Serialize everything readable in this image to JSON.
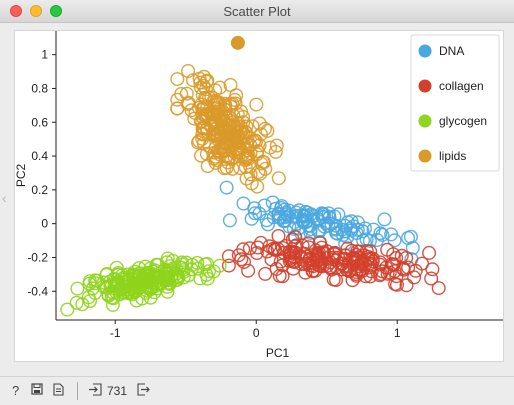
{
  "window": {
    "title": "Scatter Plot"
  },
  "chart_data": {
    "type": "scatter",
    "xlabel": "PC1",
    "ylabel": "PC2",
    "xlim": [
      -1.42,
      1.75
    ],
    "ylim": [
      -0.57,
      1.14
    ],
    "xticks": [
      "-1",
      "0",
      "1"
    ],
    "yticks": [
      "1",
      "0.8",
      "0.6",
      "0.4",
      "0.2",
      "0",
      "-0.2",
      "-0.4"
    ],
    "legend_position": "top-right",
    "series": [
      {
        "name": "DNA",
        "color": "#4aa7e0",
        "count": 110,
        "center": [
          0.45,
          0.0
        ],
        "spread": [
          0.55,
          0.09
        ],
        "tilt": -0.18,
        "highlight": []
      },
      {
        "name": "collagen",
        "color": "#d2402c",
        "count": 180,
        "center": [
          0.55,
          -0.22
        ],
        "spread": [
          0.62,
          0.1
        ],
        "tilt": -0.08,
        "highlight": []
      },
      {
        "name": "glycogen",
        "color": "#8fd41d",
        "count": 200,
        "center": [
          -0.8,
          -0.34
        ],
        "spread": [
          0.45,
          0.09
        ],
        "tilt": 0.15,
        "highlight": []
      },
      {
        "name": "lipids",
        "color": "#d99a2a",
        "count": 241,
        "center": [
          -0.2,
          0.55
        ],
        "spread": [
          0.3,
          0.24
        ],
        "tilt": -0.5,
        "highlight": [
          [
            -0.13,
            1.07
          ]
        ]
      }
    ]
  },
  "statusbar": {
    "help_icon": "question-icon",
    "save_icon": "disk-icon",
    "report_icon": "document-icon",
    "input_icon": "input-arrow-icon",
    "output_icon": "output-arrow-icon",
    "count": "731"
  }
}
